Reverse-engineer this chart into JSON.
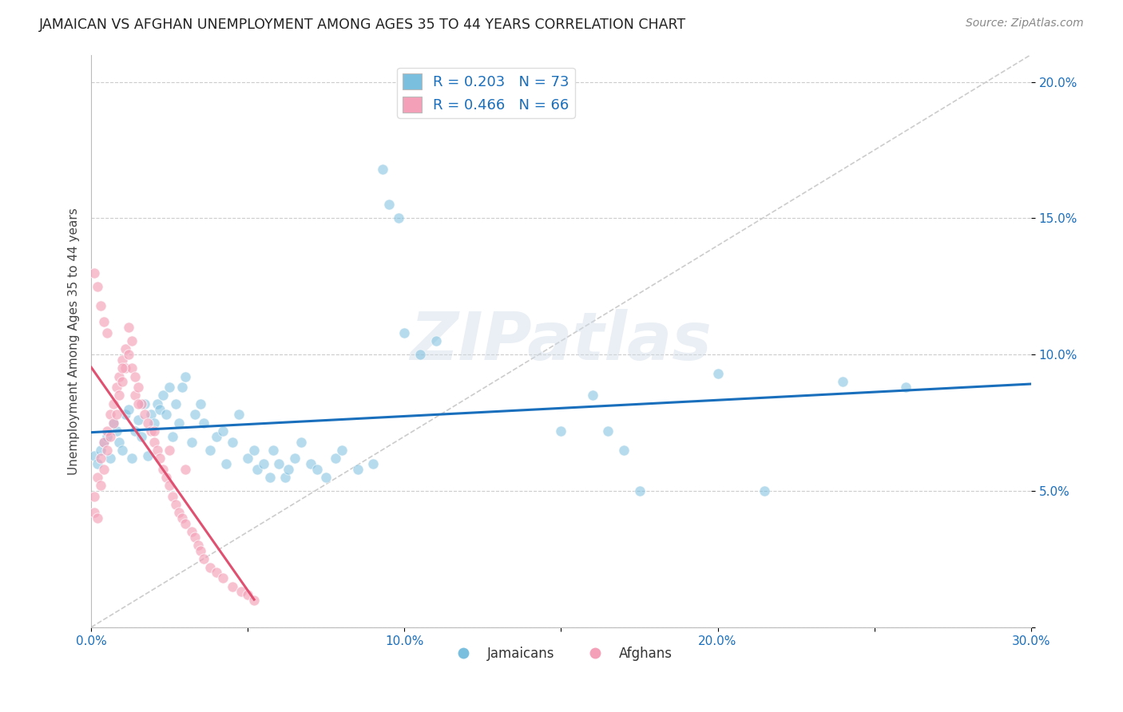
{
  "title": "JAMAICAN VS AFGHAN UNEMPLOYMENT AMONG AGES 35 TO 44 YEARS CORRELATION CHART",
  "source": "Source: ZipAtlas.com",
  "ylabel": "Unemployment Among Ages 35 to 44 years",
  "xlim": [
    0.0,
    0.3
  ],
  "ylim": [
    0.0,
    0.21
  ],
  "jamaican_color": "#7bbfdf",
  "afghan_color": "#f4a0b8",
  "jamaican_R": 0.203,
  "jamaican_N": 73,
  "afghan_R": 0.466,
  "afghan_N": 66,
  "legend_R_color": "#1a6fbd",
  "diagonal_color": "#cccccc",
  "trend_blue": "#1a6fbd",
  "trend_red": "#e05070",
  "jamaican_points": [
    [
      0.001,
      0.063
    ],
    [
      0.002,
      0.06
    ],
    [
      0.003,
      0.065
    ],
    [
      0.004,
      0.068
    ],
    [
      0.005,
      0.07
    ],
    [
      0.006,
      0.062
    ],
    [
      0.007,
      0.075
    ],
    [
      0.008,
      0.072
    ],
    [
      0.009,
      0.068
    ],
    [
      0.01,
      0.065
    ],
    [
      0.011,
      0.078
    ],
    [
      0.012,
      0.08
    ],
    [
      0.013,
      0.062
    ],
    [
      0.014,
      0.072
    ],
    [
      0.015,
      0.076
    ],
    [
      0.016,
      0.07
    ],
    [
      0.017,
      0.082
    ],
    [
      0.018,
      0.063
    ],
    [
      0.019,
      0.078
    ],
    [
      0.02,
      0.075
    ],
    [
      0.021,
      0.082
    ],
    [
      0.022,
      0.08
    ],
    [
      0.023,
      0.085
    ],
    [
      0.024,
      0.078
    ],
    [
      0.025,
      0.088
    ],
    [
      0.026,
      0.07
    ],
    [
      0.027,
      0.082
    ],
    [
      0.028,
      0.075
    ],
    [
      0.029,
      0.088
    ],
    [
      0.03,
      0.092
    ],
    [
      0.032,
      0.068
    ],
    [
      0.033,
      0.078
    ],
    [
      0.035,
      0.082
    ],
    [
      0.036,
      0.075
    ],
    [
      0.038,
      0.065
    ],
    [
      0.04,
      0.07
    ],
    [
      0.042,
      0.072
    ],
    [
      0.043,
      0.06
    ],
    [
      0.045,
      0.068
    ],
    [
      0.047,
      0.078
    ],
    [
      0.05,
      0.062
    ],
    [
      0.052,
      0.065
    ],
    [
      0.053,
      0.058
    ],
    [
      0.055,
      0.06
    ],
    [
      0.057,
      0.055
    ],
    [
      0.058,
      0.065
    ],
    [
      0.06,
      0.06
    ],
    [
      0.062,
      0.055
    ],
    [
      0.063,
      0.058
    ],
    [
      0.065,
      0.062
    ],
    [
      0.067,
      0.068
    ],
    [
      0.07,
      0.06
    ],
    [
      0.072,
      0.058
    ],
    [
      0.075,
      0.055
    ],
    [
      0.078,
      0.062
    ],
    [
      0.08,
      0.065
    ],
    [
      0.085,
      0.058
    ],
    [
      0.09,
      0.06
    ],
    [
      0.093,
      0.168
    ],
    [
      0.095,
      0.155
    ],
    [
      0.098,
      0.15
    ],
    [
      0.1,
      0.108
    ],
    [
      0.105,
      0.1
    ],
    [
      0.11,
      0.105
    ],
    [
      0.15,
      0.072
    ],
    [
      0.16,
      0.085
    ],
    [
      0.165,
      0.072
    ],
    [
      0.17,
      0.065
    ],
    [
      0.175,
      0.05
    ],
    [
      0.2,
      0.093
    ],
    [
      0.215,
      0.05
    ],
    [
      0.24,
      0.09
    ],
    [
      0.26,
      0.088
    ]
  ],
  "afghan_points": [
    [
      0.001,
      0.048
    ],
    [
      0.001,
      0.042
    ],
    [
      0.002,
      0.04
    ],
    [
      0.002,
      0.055
    ],
    [
      0.003,
      0.062
    ],
    [
      0.003,
      0.052
    ],
    [
      0.004,
      0.058
    ],
    [
      0.004,
      0.068
    ],
    [
      0.005,
      0.065
    ],
    [
      0.005,
      0.072
    ],
    [
      0.006,
      0.07
    ],
    [
      0.006,
      0.078
    ],
    [
      0.007,
      0.075
    ],
    [
      0.007,
      0.082
    ],
    [
      0.008,
      0.078
    ],
    [
      0.008,
      0.088
    ],
    [
      0.009,
      0.085
    ],
    [
      0.009,
      0.092
    ],
    [
      0.01,
      0.09
    ],
    [
      0.01,
      0.098
    ],
    [
      0.011,
      0.095
    ],
    [
      0.011,
      0.102
    ],
    [
      0.012,
      0.1
    ],
    [
      0.012,
      0.11
    ],
    [
      0.013,
      0.105
    ],
    [
      0.013,
      0.095
    ],
    [
      0.014,
      0.092
    ],
    [
      0.014,
      0.085
    ],
    [
      0.015,
      0.088
    ],
    [
      0.016,
      0.082
    ],
    [
      0.017,
      0.078
    ],
    [
      0.018,
      0.075
    ],
    [
      0.019,
      0.072
    ],
    [
      0.02,
      0.068
    ],
    [
      0.021,
      0.065
    ],
    [
      0.022,
      0.062
    ],
    [
      0.023,
      0.058
    ],
    [
      0.024,
      0.055
    ],
    [
      0.025,
      0.052
    ],
    [
      0.026,
      0.048
    ],
    [
      0.027,
      0.045
    ],
    [
      0.028,
      0.042
    ],
    [
      0.029,
      0.04
    ],
    [
      0.03,
      0.038
    ],
    [
      0.032,
      0.035
    ],
    [
      0.033,
      0.033
    ],
    [
      0.034,
      0.03
    ],
    [
      0.035,
      0.028
    ],
    [
      0.036,
      0.025
    ],
    [
      0.038,
      0.022
    ],
    [
      0.04,
      0.02
    ],
    [
      0.042,
      0.018
    ],
    [
      0.045,
      0.015
    ],
    [
      0.048,
      0.013
    ],
    [
      0.05,
      0.012
    ],
    [
      0.052,
      0.01
    ],
    [
      0.001,
      0.13
    ],
    [
      0.002,
      0.125
    ],
    [
      0.003,
      0.118
    ],
    [
      0.004,
      0.112
    ],
    [
      0.005,
      0.108
    ],
    [
      0.01,
      0.095
    ],
    [
      0.015,
      0.082
    ],
    [
      0.02,
      0.072
    ],
    [
      0.025,
      0.065
    ],
    [
      0.03,
      0.058
    ]
  ]
}
